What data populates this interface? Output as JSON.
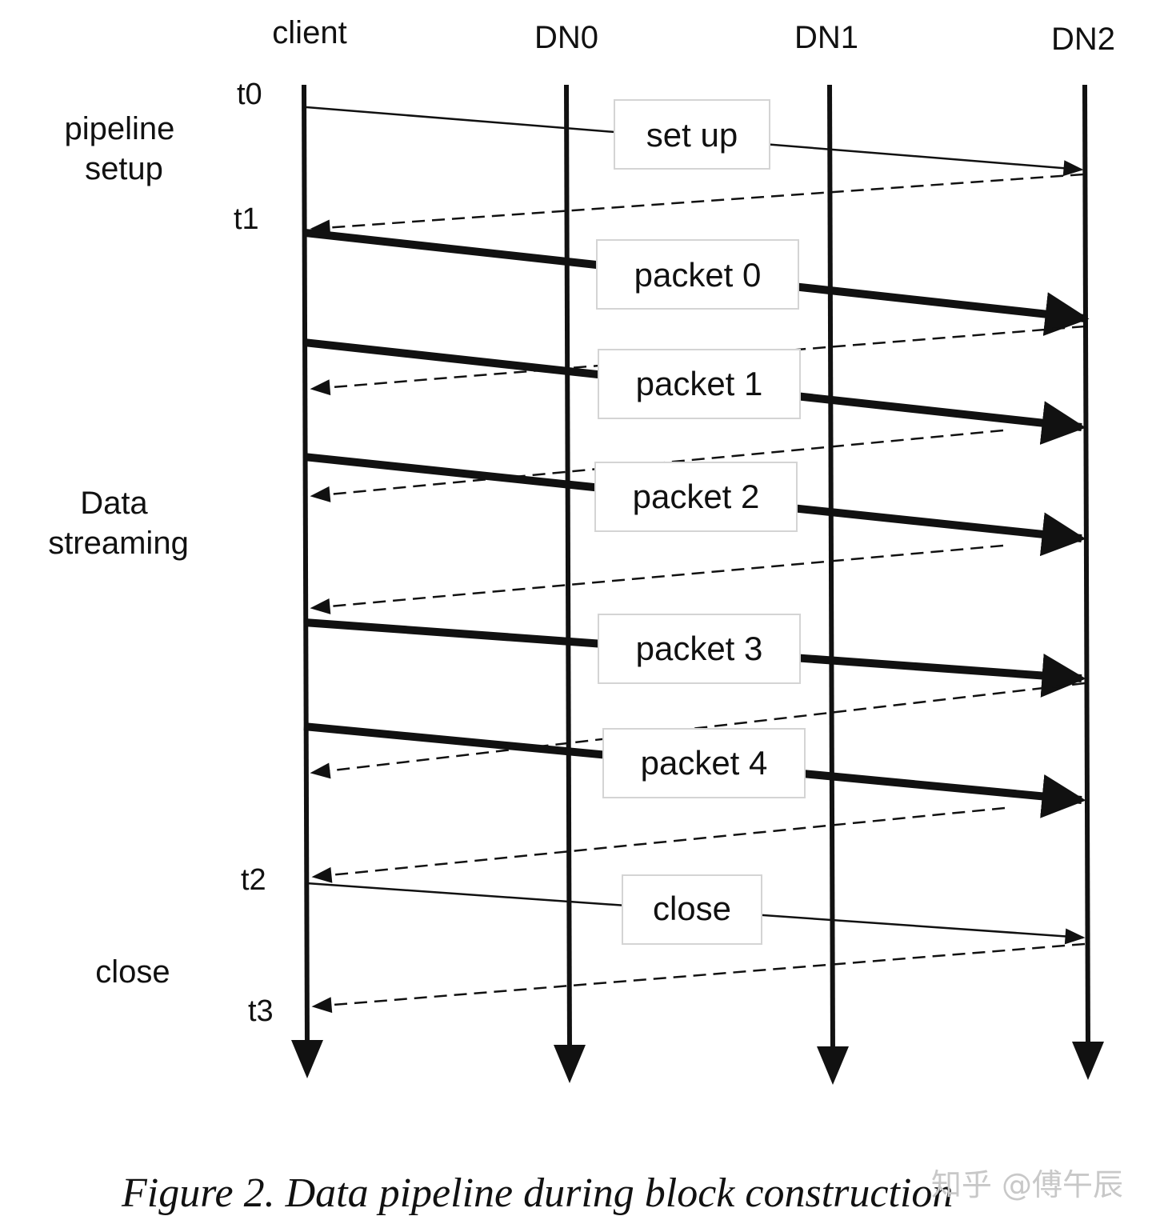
{
  "lanes": [
    {
      "id": "client",
      "label": "client"
    },
    {
      "id": "dn0",
      "label": "DN0"
    },
    {
      "id": "dn1",
      "label": "DN1"
    },
    {
      "id": "dn2",
      "label": "DN2"
    }
  ],
  "time_marks": [
    {
      "id": "t0",
      "label": "t0"
    },
    {
      "id": "t1",
      "label": "t1"
    },
    {
      "id": "t2",
      "label": "t2"
    },
    {
      "id": "t3",
      "label": "t3"
    }
  ],
  "phases": [
    {
      "id": "pipeline-setup",
      "lines": [
        "pipeline",
        "setup"
      ]
    },
    {
      "id": "data-streaming",
      "lines": [
        "Data",
        "streaming"
      ]
    },
    {
      "id": "close",
      "lines": [
        "close"
      ]
    }
  ],
  "messages": [
    {
      "id": "setup",
      "label": "set up",
      "style": "thin-solid",
      "from": "client",
      "to": "dn2"
    },
    {
      "id": "setup-ack",
      "label": "",
      "style": "dashed",
      "from": "dn2",
      "to": "client"
    },
    {
      "id": "packet-0",
      "label": "packet 0",
      "style": "thick-solid",
      "from": "client",
      "to": "dn2"
    },
    {
      "id": "ack-0",
      "label": "",
      "style": "dashed",
      "from": "dn2",
      "to": "client"
    },
    {
      "id": "packet-1",
      "label": "packet 1",
      "style": "thick-solid",
      "from": "client",
      "to": "dn2"
    },
    {
      "id": "ack-1",
      "label": "",
      "style": "dashed",
      "from": "dn2",
      "to": "client"
    },
    {
      "id": "packet-2",
      "label": "packet 2",
      "style": "thick-solid",
      "from": "client",
      "to": "dn2"
    },
    {
      "id": "ack-2",
      "label": "",
      "style": "dashed",
      "from": "dn2",
      "to": "client"
    },
    {
      "id": "packet-3",
      "label": "packet 3",
      "style": "thick-solid",
      "from": "client",
      "to": "dn2"
    },
    {
      "id": "ack-3",
      "label": "",
      "style": "dashed",
      "from": "dn2",
      "to": "client"
    },
    {
      "id": "packet-4",
      "label": "packet 4",
      "style": "thick-solid",
      "from": "client",
      "to": "dn2"
    },
    {
      "id": "ack-4",
      "label": "",
      "style": "dashed",
      "from": "dn2",
      "to": "client"
    },
    {
      "id": "close",
      "label": "close",
      "style": "thin-solid",
      "from": "client",
      "to": "dn2"
    },
    {
      "id": "close-ack",
      "label": "",
      "style": "dashed",
      "from": "dn2",
      "to": "client"
    }
  ],
  "caption": "Figure 2. Data pipeline during block construction",
  "watermark": "知乎 @傅午辰"
}
